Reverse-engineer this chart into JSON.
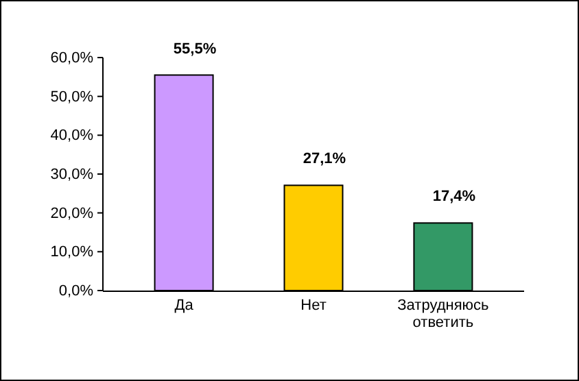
{
  "chart_data": {
    "type": "bar",
    "categories": [
      "Да",
      "Нет",
      "Затрудняюсь ответить"
    ],
    "values": [
      55.5,
      27.1,
      17.4
    ],
    "colors": [
      "#cc99ff",
      "#ffcc00",
      "#339966"
    ],
    "value_labels": [
      "55,5%",
      "27,1%",
      "17,4%"
    ],
    "ylim": [
      0,
      60
    ],
    "yticks": [
      {
        "value": 0,
        "label": "0,0%"
      },
      {
        "value": 10,
        "label": "10,0%"
      },
      {
        "value": 20,
        "label": "20,0%"
      },
      {
        "value": 30,
        "label": "30,0%"
      },
      {
        "value": 40,
        "label": "40,0%"
      },
      {
        "value": 50,
        "label": "50,0%"
      },
      {
        "value": 60,
        "label": "60,0%"
      }
    ],
    "grid": false
  }
}
